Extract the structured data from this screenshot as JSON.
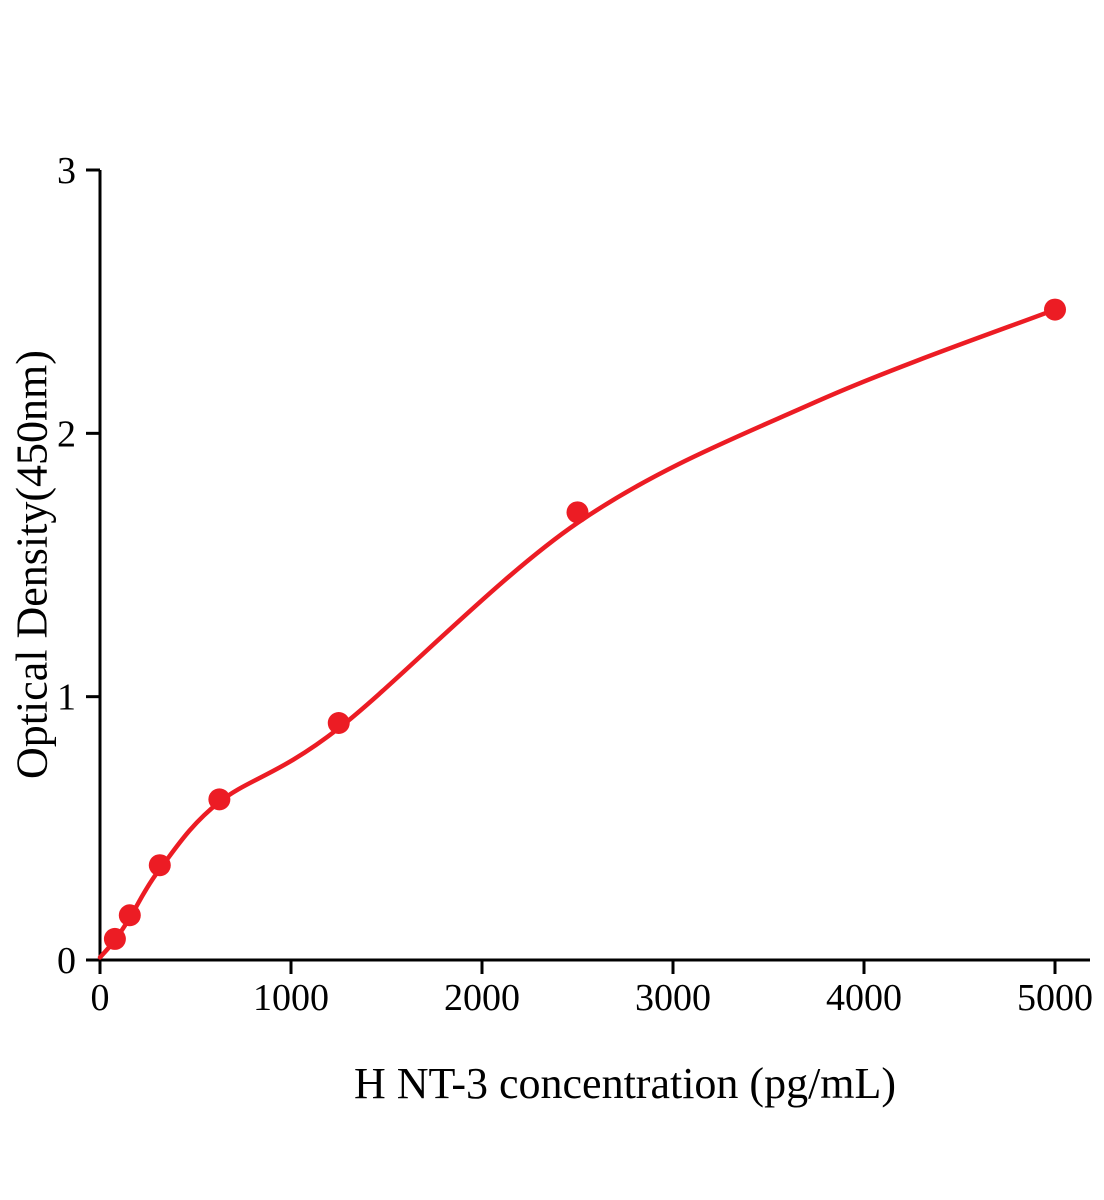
{
  "chart_data": {
    "type": "scatter",
    "title": "",
    "xlabel": "H NT-3 concentration (pg/mL)",
    "ylabel": "Optical Density(450nm)",
    "x": [
      78,
      156,
      313,
      625,
      1250,
      2500,
      5000
    ],
    "y": [
      0.08,
      0.17,
      0.36,
      0.61,
      0.9,
      1.7,
      2.47
    ],
    "xlim": [
      0,
      5000
    ],
    "ylim": [
      0,
      3
    ],
    "xticks": [
      0,
      1000,
      2000,
      3000,
      4000,
      5000
    ],
    "yticks": [
      0,
      1,
      2,
      3
    ],
    "xtick_labels": [
      "0",
      "1000",
      "2000",
      "3000",
      "4000",
      "5000"
    ],
    "ytick_labels": [
      "0",
      "1",
      "2",
      "3"
    ],
    "grid": false,
    "legend": "none",
    "point_color": "#ec1c24",
    "line_color": "#ec1c24",
    "axis_color": "#000000",
    "fit_curve": [
      [
        0,
        0.01
      ],
      [
        78,
        0.075
      ],
      [
        156,
        0.16
      ],
      [
        313,
        0.345
      ],
      [
        625,
        0.6
      ],
      [
        1250,
        0.88
      ],
      [
        2500,
        1.66
      ],
      [
        3750,
        2.12
      ],
      [
        5000,
        2.47
      ]
    ]
  }
}
